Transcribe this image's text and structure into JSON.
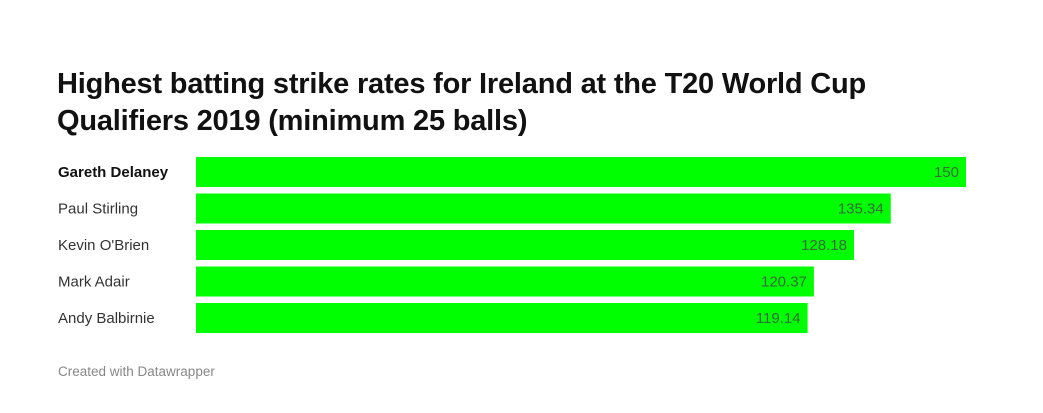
{
  "title": "Highest batting strike rates for Ireland at the T20 World Cup Qualifiers 2019 (minimum 25 balls)",
  "footer": "Created with Datawrapper",
  "colors": {
    "bar": "#00ff00",
    "value_text": "#3a6a3a"
  },
  "chart_data": {
    "type": "bar",
    "orientation": "horizontal",
    "title": "Highest batting strike rates for Ireland at the T20 World Cup Qualifiers 2019 (minimum 25 balls)",
    "categories": [
      "Gareth Delaney",
      "Paul Stirling",
      "Kevin O'Brien",
      "Mark Adair",
      "Andy Balbirnie"
    ],
    "values": [
      150,
      135.34,
      128.18,
      120.37,
      119.14
    ],
    "value_labels": [
      "150",
      "135.34",
      "128.18",
      "120.37",
      "119.14"
    ],
    "highlighted_category": "Gareth Delaney",
    "xlim": [
      0,
      150
    ],
    "grid": false,
    "legend": "none"
  }
}
